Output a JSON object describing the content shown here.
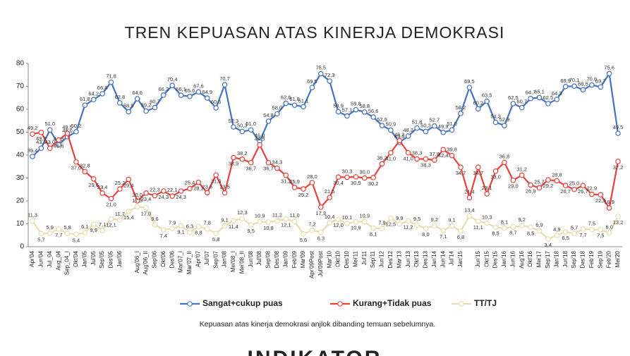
{
  "chart_data": {
    "type": "line",
    "title": "TREN KEPUASAN ATAS KINERJA DEMOKRASI",
    "caption": "Kepuasan atas kinerja demokrasi anjlok dibanding temuan sebelumnya.",
    "logo": "INDIKATOR",
    "categories": [
      "Apr'04",
      "Jun'04",
      "Jul_04",
      "Aug_04",
      "Sep_04_I",
      "Okt'04",
      "Jan'05",
      "Jul'05",
      "Sep'05",
      "Des'05",
      "Jan'06",
      null,
      "Aug'06_I",
      "Aug'06_II",
      "Sep'06",
      "Okt'06",
      "Des'06",
      "Mar'07_I",
      "Mar'07_II",
      "Apr'07",
      "Jul'07",
      "Sep'07",
      "Jan'08",
      "Mei'08_I",
      "Mei'08_II",
      "Jun'08",
      "Jul'08",
      "Sep'08",
      "Des'08",
      "Jan'09",
      "Feb'09",
      "Mar'09",
      "Apr'09Post",
      "Jul'09Post",
      "Mar'10",
      "Okt'10",
      "Des'10",
      "Mei'11",
      "Jul'11",
      "Sep'11",
      "Jun'12",
      "Des'12",
      "Mar'13",
      "Jun'13",
      "Okt'13",
      "Des'13",
      "Jan'14",
      "Jun'14",
      "Jul'14",
      "Jan'15",
      null,
      "Jun'15",
      "Okt'15",
      "Des'15",
      "Jan'16",
      "Jun'16",
      "Aug'16",
      "Okt'16",
      "Mei'17",
      "Sep'17",
      "Jan'18",
      "Jun'18",
      "Sep'18",
      "Des'18",
      "Feb'19",
      "Sep'19",
      "Feb'20",
      "Mei'20"
    ],
    "ylim": [
      0,
      80
    ],
    "yticks": [
      0,
      10,
      20,
      30,
      40,
      50,
      60,
      70,
      80
    ],
    "legend": "bottom",
    "series": [
      {
        "name": "Sangat+cukup puas",
        "color": "#4472c4",
        "values": [
          39.4,
          43,
          51,
          44.5,
          48,
          50.2,
          61.8,
          64.2,
          66.8,
          71.8,
          62.8,
          58.9,
          64.6,
          59.2,
          60.7,
          66.2,
          70.4,
          66.1,
          65.6,
          67.6,
          64.9,
          60.6,
          70.7,
          52.3,
          50.3,
          51,
          46,
          54.8,
          58,
          62.6,
          61.8,
          61.1,
          69.5,
          75.5,
          72.3,
          58.9,
          57.1,
          59.8,
          58.8,
          56.6,
          52.9,
          50.9,
          45.5,
          48.3,
          51.8,
          50.3,
          52.7,
          49.9,
          51,
          58.2,
          69.5,
          60.2,
          63.5,
          54.3,
          52.9,
          62.5,
          60.7,
          64.7,
          65.1,
          62.5,
          64.3,
          69.9,
          70.1,
          68.5,
          70.6,
          69.7,
          75.6,
          49.5
        ],
        "value_labels": [
          "39,4",
          "43,0",
          "51,0",
          "44,5",
          "48,0",
          "50,2",
          "61,8",
          "64,2",
          "66,8",
          "71,8",
          "62,8",
          "58,9",
          "64,6",
          "59,2",
          "60,7",
          "66,2",
          "70,4",
          "66,1",
          "65,6",
          "67,6",
          "64,9",
          "60,6",
          "70,7",
          "52,3",
          "50,3",
          "51,0",
          "46,0",
          "54,8",
          "58,0",
          "62,6",
          "61,8",
          "61,1",
          "69,5",
          "75,5",
          "72,3",
          "58,9",
          "57,1",
          "59,8",
          "58,8",
          "56,6",
          "52,9",
          "50,9",
          "45,5",
          "48,3",
          "51,8",
          "50,3",
          "52,7",
          "49,9",
          "51,0",
          "58,2",
          "69,5",
          "60,2",
          "63,5",
          "54,3",
          "52,9",
          "62,5",
          "60,7",
          "64,7",
          "65,1",
          "62,5",
          "64,3",
          "69,9",
          "70,1",
          "68,5",
          "70,6",
          "69,7",
          "75,6",
          "49,5"
        ]
      },
      {
        "name": "Kurang+Tidak puas",
        "color": "#e8413a",
        "values": [
          49.2,
          49.9,
          43,
          46.6,
          49.5,
          37,
          32.8,
          29.6,
          23.4,
          21,
          25.2,
          29.4,
          20,
          23.4,
          22.3,
          24.3,
          22.1,
          24.3,
          25.4,
          28.1,
          23.6,
          31.3,
          23.5,
          38.9,
          38.2,
          36.7,
          44.5,
          36.7,
          34.3,
          31.2,
          25.9,
          25.2,
          28,
          17.3,
          21.5,
          30.4,
          30.3,
          30.5,
          30,
          30.2,
          36.2,
          41,
          46.3,
          41,
          38.3,
          38.3,
          37.8,
          42.4,
          39.8,
          34.7,
          21.4,
          34.7,
          23.1,
          33,
          36.8,
          29,
          31.2,
          26.9,
          25.7,
          29.2,
          28.8,
          26.7,
          25,
          26.7,
          22.9,
          22.7,
          16.9,
          37.2
        ],
        "value_labels": [
          "49,2",
          "49,9",
          "43,0",
          "46,6",
          "49,5",
          "37,0",
          "32,8",
          "29,6",
          "23,4",
          "21,0",
          "25,2",
          "29,4",
          "20,0",
          "23,4",
          "22,3",
          "24,3",
          "22,1",
          "24,3",
          "25,4",
          "28,1",
          "23,6",
          "31,3",
          "23,5",
          "38,9",
          "38,2",
          "36,7",
          "44,5",
          "36,7",
          "34,3",
          "31,2",
          "25,9",
          "25,2",
          "28,0",
          "17,3",
          "21,5",
          "30,4",
          "30,3",
          "30,5",
          "30,0",
          "30,2",
          "36,2",
          "41,0",
          "46,3",
          "41,0",
          "38,3",
          "38,3",
          "37,8",
          "42,4",
          "39,8",
          "34,7",
          "21,4",
          "34,7",
          "23,1",
          "33,0",
          "36,8",
          "29,0",
          "31,2",
          "26,9",
          "25,7",
          "29,2",
          "28,8",
          "26,7",
          "25,0",
          "26,7",
          "22,9",
          "22,7",
          "16,9",
          "37,2"
        ]
      },
      {
        "name": "TT/TJ",
        "color": "#e6ddb0",
        "values": [
          11.3,
          5.7,
          5.9,
          7.7,
          5.8,
          5.4,
          6.1,
          9.9,
          7.1,
          12.1,
          11.7,
          15.4,
          17.5,
          17,
          9.6,
          7.4,
          7.9,
          9.1,
          6.3,
          8.8,
          7.8,
          5.8,
          9.1,
          11.4,
          12.3,
          9.5,
          10.9,
          10.8,
          11.2,
          12.1,
          11,
          5.6,
          7.2,
          6.3,
          10.4,
          12,
          10.1,
          10.9,
          10.9,
          8.1,
          7.9,
          12.5,
          9.9,
          11.2,
          9.5,
          8,
          9.2,
          7.1,
          9.1,
          6.8,
          13.4,
          11.1,
          10.3,
          8.5,
          8.1,
          8.7,
          9.2,
          8.5,
          6.9,
          3.4,
          4.9,
          6.5,
          5.7,
          7.7,
          7.5,
          7.5,
          6,
          13.2
        ],
        "value_labels": [
          "11,3",
          "5,7",
          "5,9",
          "7,7",
          "5,8",
          "5,4",
          "6,1",
          "9,9",
          "7,1",
          "12,1",
          "11,7",
          "15,4",
          "17,5",
          "17,0",
          "9,6",
          "7,4",
          "7,9",
          "9,1",
          "6,3",
          "8,8",
          "7,8",
          "5,8",
          "9,1",
          "11,4",
          "12,3",
          "9,5",
          "10,9",
          "10,8",
          "11,2",
          "12,1",
          "11,0",
          "5,6",
          "7,2",
          "6,3",
          "10,4",
          "12,0",
          "10,1",
          "10,9",
          "10,9",
          "8,1",
          "7,9",
          "12,5",
          "9,9",
          "11,2",
          "9,5",
          "8,0",
          "9,2",
          "7,1",
          "9,1",
          "6,8",
          "13,4",
          "11,1",
          "10,3",
          "8,5",
          "8,1",
          "8,7",
          "9,2",
          "8,5",
          "6,9",
          "3,4",
          "4,9",
          "6,5",
          "5,7",
          "7,7",
          "7,5",
          "7,5",
          "6,0",
          "13,2"
        ]
      }
    ]
  }
}
